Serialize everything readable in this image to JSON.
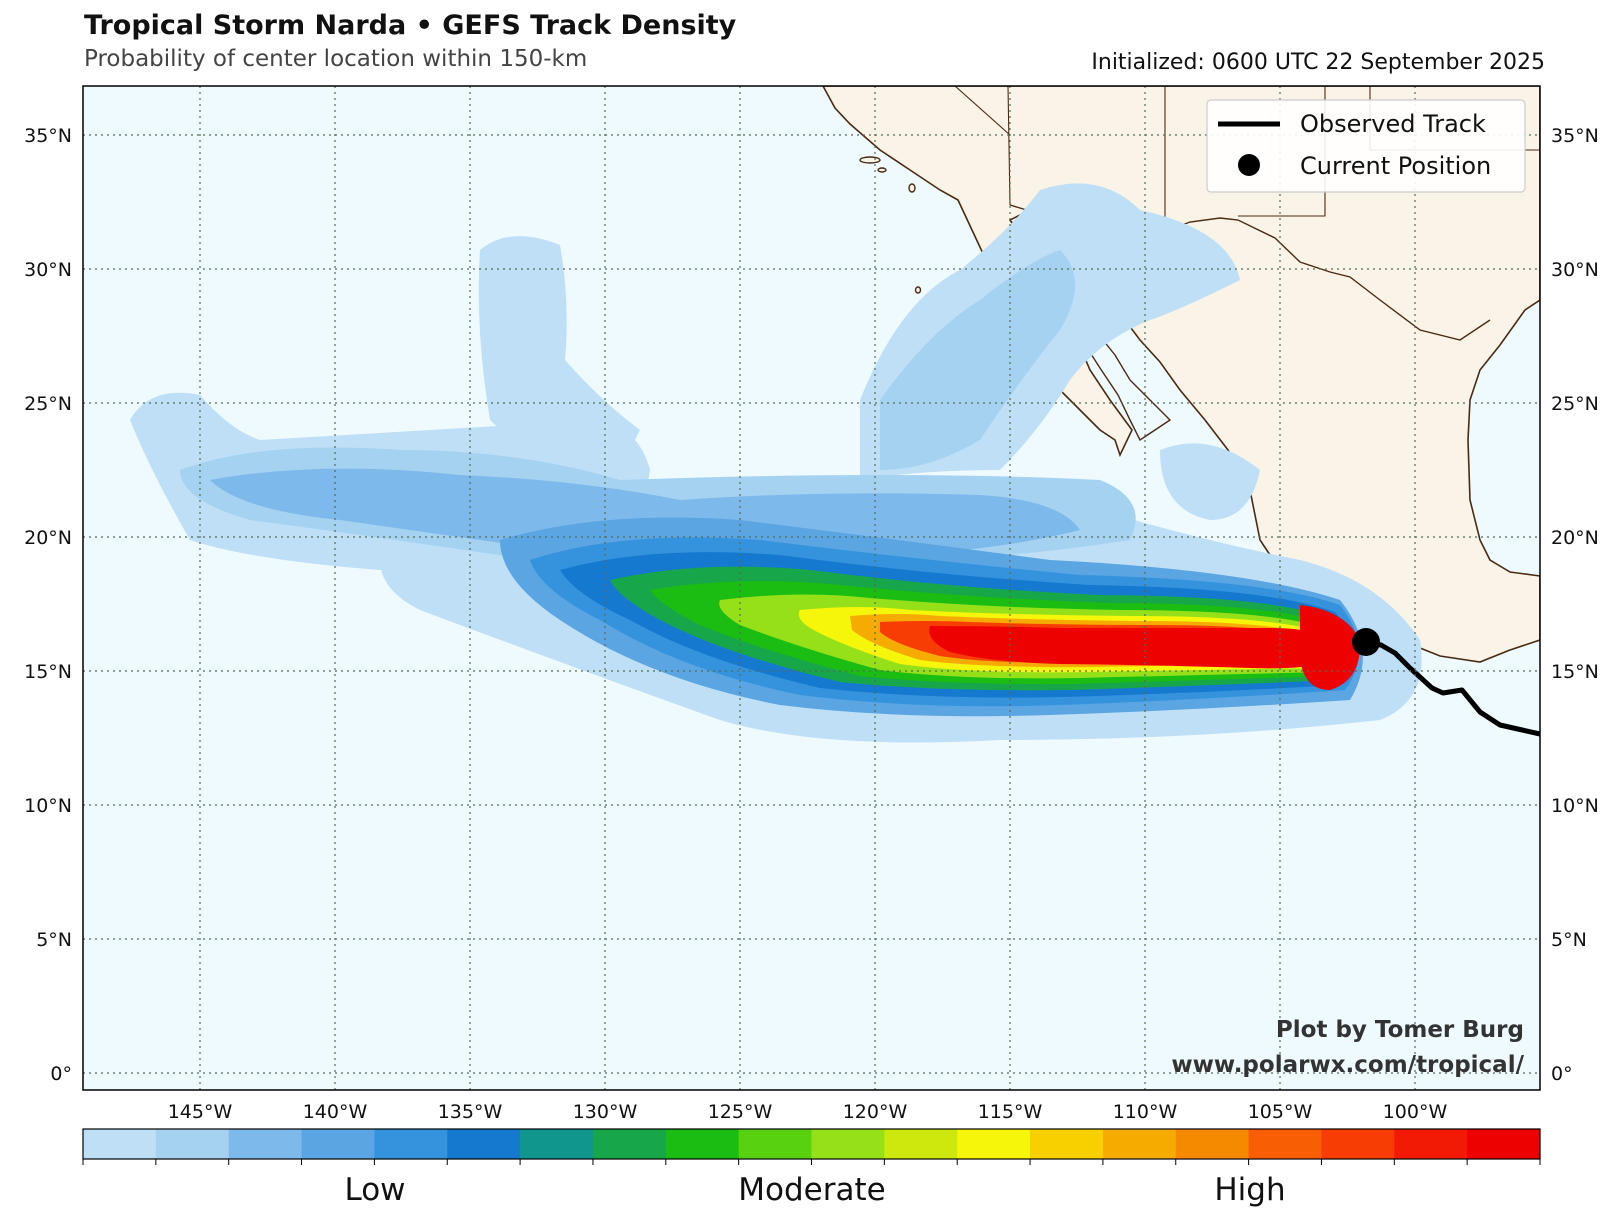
{
  "title": "Tropical Storm Narda • GEFS Track Density",
  "subtitle": "Probability of center location within 150-km",
  "initialized": "Initialized: 0600 UTC 22 September 2025",
  "legend": {
    "observed": "Observed Track",
    "current": "Current Position"
  },
  "credit": {
    "line1": "Plot by Tomer Burg",
    "line2": "www.polarwx.com/tropical/"
  },
  "colorbar": {
    "labels": [
      "Low",
      "Moderate",
      "High"
    ],
    "colors": [
      "#bfdff6",
      "#a6d2f2",
      "#7db9ea",
      "#5aa5e2",
      "#3593de",
      "#1679d0",
      "#10968c",
      "#18a64a",
      "#1bbd12",
      "#58d10e",
      "#96e01a",
      "#cde80c",
      "#f6f60a",
      "#f8d000",
      "#f6ab00",
      "#f58a00",
      "#f85e04",
      "#f73d04",
      "#f31a05",
      "#ee0101"
    ]
  },
  "map": {
    "ocean_color": "#eefafe",
    "land_color": "#faf4e8",
    "border_color": "#4a2a12",
    "lon_ticks": [
      "145°W",
      "140°W",
      "135°W",
      "130°W",
      "125°W",
      "120°W",
      "115°W",
      "110°W",
      "105°W",
      "100°W"
    ],
    "lat_ticks": [
      "0°",
      "5°N",
      "10°N",
      "15°N",
      "20°N",
      "25°N",
      "30°N",
      "35°N"
    ]
  },
  "chart_data": {
    "type": "heatmap",
    "variable": "GEFS track density",
    "lon_ticks_deg": [
      -145,
      -140,
      -135,
      -130,
      -125,
      -120,
      -115,
      -110,
      -105,
      -100
    ],
    "lat_ticks_deg": [
      0,
      5,
      10,
      15,
      20,
      25,
      30,
      35
    ],
    "current_position": {
      "lon": -101.1,
      "lat": 15.1
    },
    "observed_track": [
      {
        "lon": -96.0,
        "lat": 11.8
      },
      {
        "lon": -97.0,
        "lat": 12.2
      },
      {
        "lon": -97.5,
        "lat": 12.6
      },
      {
        "lon": -98.1,
        "lat": 13.2
      },
      {
        "lon": -98.6,
        "lat": 13.1
      },
      {
        "lon": -99.0,
        "lat": 13.4
      },
      {
        "lon": -99.7,
        "lat": 14.0
      },
      {
        "lon": -100.3,
        "lat": 14.6
      },
      {
        "lon": -100.7,
        "lat": 15.0
      },
      {
        "lon": -101.1,
        "lat": 15.1
      }
    ]
  }
}
